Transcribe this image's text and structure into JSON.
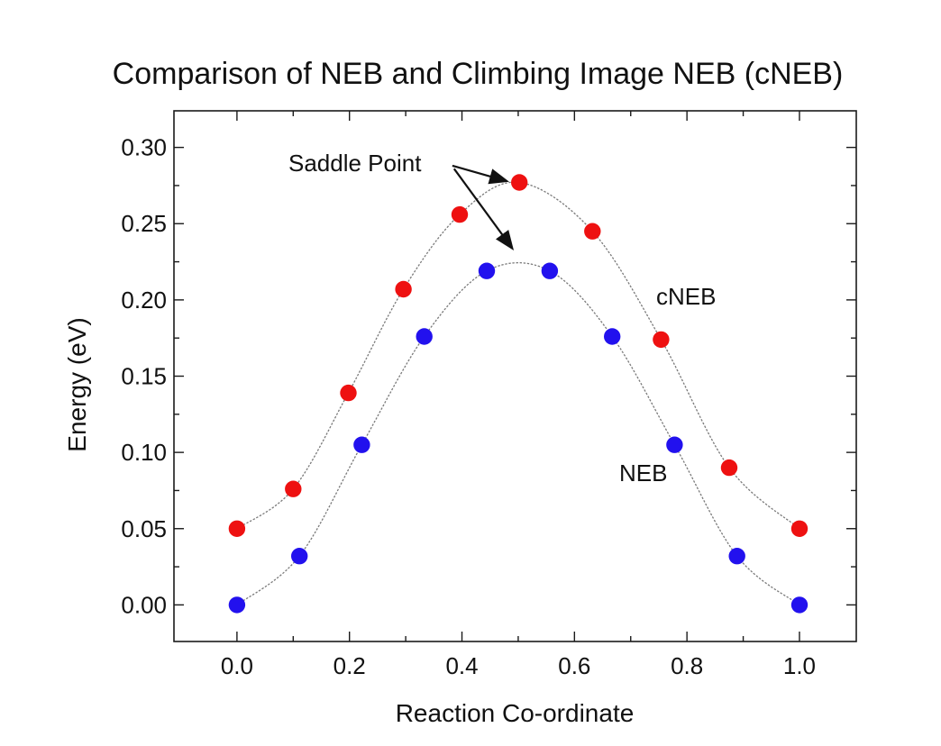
{
  "figure": {
    "background": "#ffffff",
    "frame_color": "#1a1a1a",
    "curve_color": "#7a7a7a",
    "text_color": "#111111"
  },
  "chart_data": {
    "type": "line",
    "title": "Comparison of NEB and Climbing Image NEB (cNEB)",
    "xlabel": "Reaction Co-ordinate",
    "ylabel": "Energy  (eV)",
    "xlim": [
      -0.112,
      1.101
    ],
    "ylim": [
      -0.024,
      0.324
    ],
    "grid": false,
    "legend_position": "inline-labels",
    "x_major_ticks": [
      0.0,
      0.2,
      0.4,
      0.6,
      0.8,
      1.0
    ],
    "x_minor_ticks": [
      0.1,
      0.3,
      0.5,
      0.7,
      0.9
    ],
    "x_tick_labels": [
      "0.0",
      "0.2",
      "0.4",
      "0.6",
      "0.8",
      "1.0"
    ],
    "y_major_ticks": [
      0.0,
      0.05,
      0.1,
      0.15,
      0.2,
      0.25,
      0.3
    ],
    "y_minor_ticks": [
      0.025,
      0.075,
      0.125,
      0.175,
      0.225,
      0.275
    ],
    "y_tick_labels": [
      "0.00",
      "0.05",
      "0.10",
      "0.15",
      "0.20",
      "0.25",
      "0.30"
    ],
    "series": [
      {
        "name": "cNEB",
        "color": "#ee1111",
        "marker": "circle",
        "x": [
          0.0,
          0.1,
          0.198,
          0.296,
          0.396,
          0.502,
          0.632,
          0.754,
          0.875,
          1.0
        ],
        "y": [
          0.05,
          0.076,
          0.139,
          0.207,
          0.256,
          0.277,
          0.245,
          0.174,
          0.09,
          0.05
        ]
      },
      {
        "name": "NEB",
        "color": "#2211ee",
        "marker": "circle",
        "x": [
          0.0,
          0.111,
          0.222,
          0.333,
          0.444,
          0.556,
          0.667,
          0.778,
          0.889,
          1.0
        ],
        "y": [
          0.0,
          0.032,
          0.105,
          0.176,
          0.219,
          0.219,
          0.176,
          0.105,
          0.032,
          0.0
        ]
      }
    ],
    "annotations": {
      "saddle_point_label": "Saddle Point",
      "cneb_label": "cNEB",
      "neb_label": "NEB",
      "arrows": [
        {
          "from": [
            0.383,
            0.288
          ],
          "to": [
            0.479,
            0.278
          ],
          "points_at": "cNEB saddle point image"
        },
        {
          "from": [
            0.386,
            0.286
          ],
          "to": [
            0.489,
            0.234
          ],
          "points_at": "NEB curve top (no image at saddle)"
        }
      ]
    }
  }
}
